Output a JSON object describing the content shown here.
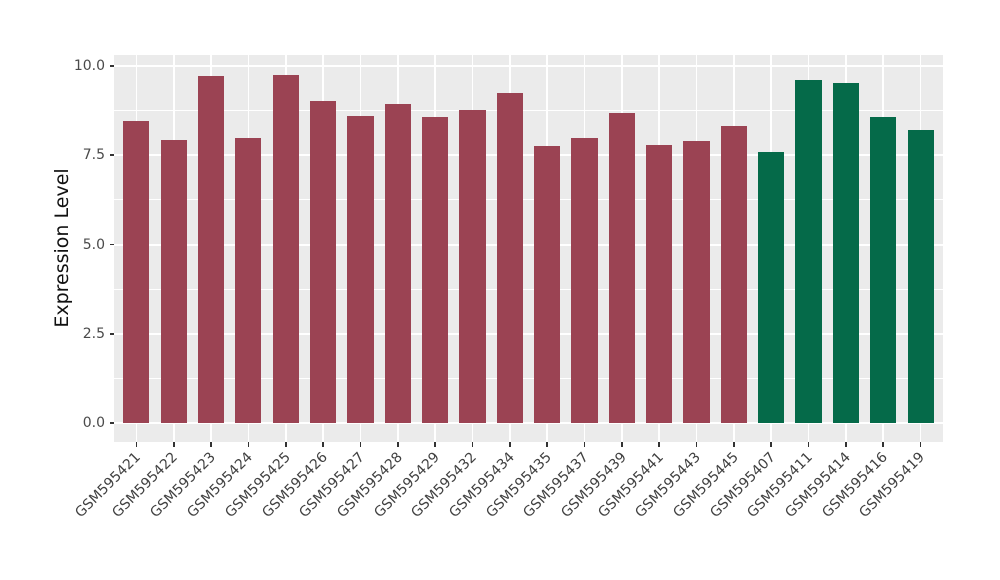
{
  "chart_data": {
    "type": "bar",
    "title": "",
    "ylabel": "Expression Level",
    "xlabel": "",
    "categories": [
      "GSM595421",
      "GSM595422",
      "GSM595423",
      "GSM595424",
      "GSM595425",
      "GSM595426",
      "GSM595427",
      "GSM595428",
      "GSM595429",
      "GSM595432",
      "GSM595434",
      "GSM595435",
      "GSM595437",
      "GSM595439",
      "GSM595441",
      "GSM595443",
      "GSM595445",
      "GSM595407",
      "GSM595411",
      "GSM595414",
      "GSM595416",
      "GSM595419"
    ],
    "values": [
      8.45,
      7.92,
      9.72,
      7.98,
      9.75,
      9.03,
      8.6,
      8.93,
      8.56,
      8.78,
      9.24,
      7.77,
      7.97,
      8.67,
      7.78,
      7.9,
      8.32,
      7.6,
      9.62,
      9.52,
      8.56,
      8.22
    ],
    "bar_color_index": [
      0,
      0,
      0,
      0,
      0,
      0,
      0,
      0,
      0,
      0,
      0,
      0,
      0,
      0,
      0,
      0,
      0,
      1,
      1,
      1,
      1,
      1
    ],
    "palette": [
      "#9B4353",
      "#056A49"
    ],
    "yticks": {
      "values": [
        0,
        2.5,
        5,
        7.5,
        10
      ],
      "labels": [
        "0.0",
        "2.5",
        "5.0",
        "7.5",
        "10.0"
      ]
    },
    "minor_yticks": [
      1.25,
      3.75,
      6.25,
      8.75
    ],
    "ylim": [
      0,
      10
    ],
    "grid": true,
    "legend": false,
    "panel_bg": "#EBEBEB",
    "grid_color": "#FFFFFF"
  }
}
